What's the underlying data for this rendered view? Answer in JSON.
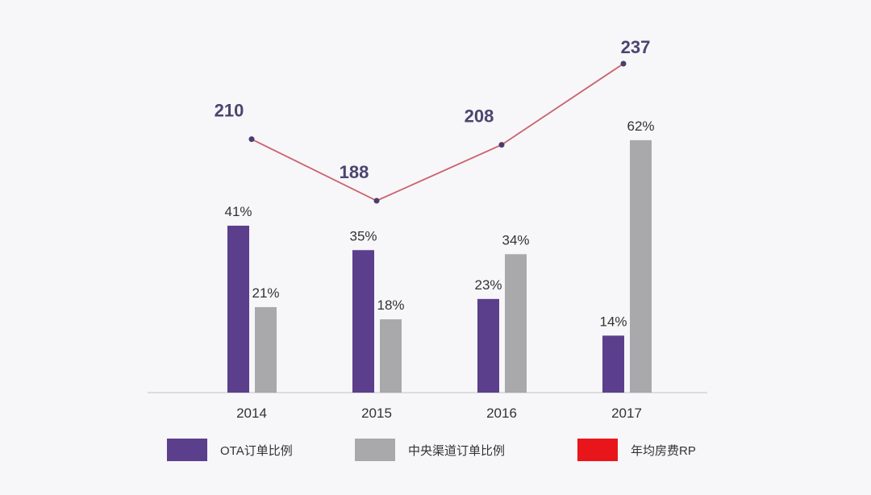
{
  "chart_data": {
    "type": "bar",
    "categories": [
      "2014",
      "2015",
      "2016",
      "2017"
    ],
    "series": [
      {
        "name": "OTA订单比例",
        "kind": "bar",
        "values": [
          41,
          35,
          23,
          14
        ],
        "labels": [
          "41%",
          "35%",
          "23%",
          "14%"
        ],
        "color": "#5b3f8c"
      },
      {
        "name": "中央渠道订单比例",
        "kind": "bar",
        "values": [
          21,
          18,
          34,
          62
        ],
        "labels": [
          "21%",
          "18%",
          "34%",
          "62%"
        ],
        "color": "#a9a8ab"
      },
      {
        "name": "年均房费RP",
        "kind": "line",
        "values": [
          210,
          188,
          208,
          237
        ],
        "labels": [
          "210",
          "188",
          "208",
          "237"
        ],
        "color": "#e8161b",
        "line_color": "#c8636e"
      }
    ],
    "title": "",
    "xlabel": "",
    "ylabel": "",
    "grid": false,
    "legend_position": "bottom"
  }
}
